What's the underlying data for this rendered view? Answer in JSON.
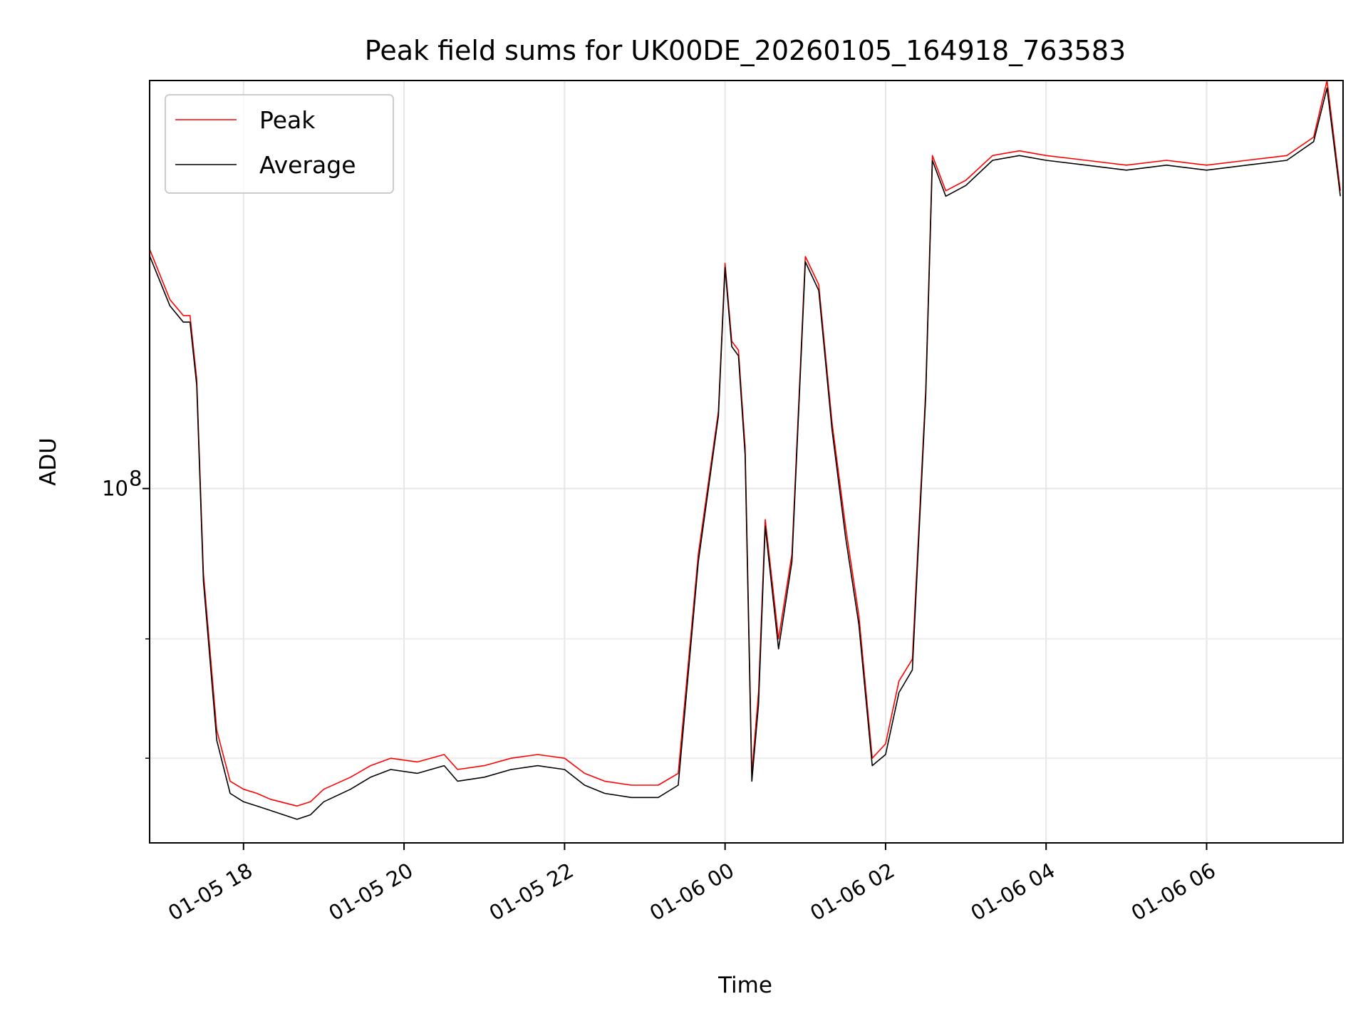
{
  "chart_data": {
    "type": "line",
    "title": "Peak field sums for UK00DE_20260105_164918_763583",
    "xlabel": "Time",
    "ylabel": "ADU",
    "x_unit": "hours",
    "xlim": [
      16.83,
      7.7
    ],
    "x_start_day": "01-05",
    "ylim": [
      30000000,
      400000000
    ],
    "y_scale": "log",
    "grid": true,
    "legend_position": "top-left",
    "x_ticks": [
      {
        "value": 18,
        "label": "01-05 18"
      },
      {
        "value": 20,
        "label": "01-05 20"
      },
      {
        "value": 22,
        "label": "01-05 22"
      },
      {
        "value": 0,
        "label": "01-06 00"
      },
      {
        "value": 2,
        "label": "01-06 02"
      },
      {
        "value": 4,
        "label": "01-06 04"
      },
      {
        "value": 6,
        "label": "01-06 06"
      }
    ],
    "y_major_ticks": [
      {
        "value": 100000000,
        "label_base": "10",
        "label_exp": "8"
      }
    ],
    "y_minor_ticks": [
      40000000,
      60000000
    ],
    "series": [
      {
        "name": "Peak",
        "color": "#ff0000",
        "x": [
          "01-05 16:50",
          "01-05 17:05",
          "01-05 17:15",
          "01-05 17:20",
          "01-05 17:25",
          "01-05 17:30",
          "01-05 17:40",
          "01-05 17:50",
          "01-05 18:00",
          "01-05 18:10",
          "01-05 18:20",
          "01-05 18:40",
          "01-05 18:50",
          "01-05 19:00",
          "01-05 19:20",
          "01-05 19:35",
          "01-05 19:50",
          "01-05 20:10",
          "01-05 20:30",
          "01-05 20:40",
          "01-05 21:00",
          "01-05 21:20",
          "01-05 21:40",
          "01-05 22:00",
          "01-05 22:15",
          "01-05 22:30",
          "01-05 22:50",
          "01-05 23:10",
          "01-05 23:25",
          "01-05 23:40",
          "01-05 23:55",
          "01-06 00:00",
          "01-06 00:05",
          "01-06 00:10",
          "01-06 00:15",
          "01-06 00:20",
          "01-06 00:25",
          "01-06 00:30",
          "01-06 00:40",
          "01-06 00:50",
          "01-06 01:00",
          "01-06 01:10",
          "01-06 01:20",
          "01-06 01:30",
          "01-06 01:40",
          "01-06 01:50",
          "01-06 02:00",
          "01-06 02:10",
          "01-06 02:20",
          "01-06 02:30",
          "01-06 02:35",
          "01-06 02:45",
          "01-06 03:00",
          "01-06 03:20",
          "01-06 03:40",
          "01-06 04:00",
          "01-06 04:30",
          "01-06 05:00",
          "01-06 05:30",
          "01-06 06:00",
          "01-06 06:30",
          "01-06 07:00",
          "01-06 07:20",
          "01-06 07:30",
          "01-06 07:40"
        ],
        "values": [
          225000000,
          190000000,
          180000000,
          180000000,
          145000000,
          75000000,
          44000000,
          37000000,
          36000000,
          35500000,
          34800000,
          34000000,
          34500000,
          36000000,
          37500000,
          39000000,
          40000000,
          39500000,
          40500000,
          38500000,
          39000000,
          40000000,
          40500000,
          40000000,
          38000000,
          37000000,
          36500000,
          36500000,
          38000000,
          80000000,
          130000000,
          215000000,
          165000000,
          160000000,
          115000000,
          38000000,
          50000000,
          90000000,
          60000000,
          80000000,
          220000000,
          200000000,
          125000000,
          88000000,
          65000000,
          40000000,
          42000000,
          52000000,
          56000000,
          140000000,
          310000000,
          275000000,
          285000000,
          310000000,
          315000000,
          310000000,
          305000000,
          300000000,
          305000000,
          300000000,
          305000000,
          310000000,
          330000000,
          400000000,
          275000000
        ]
      },
      {
        "name": "Average",
        "color": "#000000",
        "x": [
          "01-05 16:50",
          "01-05 17:05",
          "01-05 17:15",
          "01-05 17:20",
          "01-05 17:25",
          "01-05 17:30",
          "01-05 17:40",
          "01-05 17:50",
          "01-05 18:00",
          "01-05 18:10",
          "01-05 18:20",
          "01-05 18:40",
          "01-05 18:50",
          "01-05 19:00",
          "01-05 19:20",
          "01-05 19:35",
          "01-05 19:50",
          "01-05 20:10",
          "01-05 20:30",
          "01-05 20:40",
          "01-05 21:00",
          "01-05 21:20",
          "01-05 21:40",
          "01-05 22:00",
          "01-05 22:15",
          "01-05 22:30",
          "01-05 22:50",
          "01-05 23:10",
          "01-05 23:25",
          "01-05 23:40",
          "01-05 23:55",
          "01-06 00:00",
          "01-06 00:05",
          "01-06 00:10",
          "01-06 00:15",
          "01-06 00:20",
          "01-06 00:25",
          "01-06 00:30",
          "01-06 00:40",
          "01-06 00:50",
          "01-06 01:00",
          "01-06 01:10",
          "01-06 01:20",
          "01-06 01:30",
          "01-06 01:40",
          "01-06 01:50",
          "01-06 02:00",
          "01-06 02:10",
          "01-06 02:20",
          "01-06 02:30",
          "01-06 02:35",
          "01-06 02:45",
          "01-06 03:00",
          "01-06 03:20",
          "01-06 03:40",
          "01-06 04:00",
          "01-06 04:30",
          "01-06 05:00",
          "01-06 05:30",
          "01-06 06:00",
          "01-06 06:30",
          "01-06 07:00",
          "01-06 07:20",
          "01-06 07:30",
          "01-06 07:40"
        ],
        "values": [
          220000000,
          186000000,
          176000000,
          176000000,
          142000000,
          73000000,
          42500000,
          35500000,
          34500000,
          34000000,
          33500000,
          32500000,
          33000000,
          34500000,
          36000000,
          37500000,
          38500000,
          38000000,
          39000000,
          37000000,
          37500000,
          38500000,
          39000000,
          38500000,
          36500000,
          35500000,
          35000000,
          35000000,
          36500000,
          78000000,
          128000000,
          212000000,
          162000000,
          157000000,
          112000000,
          37000000,
          48000000,
          88000000,
          58000000,
          78000000,
          216000000,
          196000000,
          122000000,
          85000000,
          63000000,
          39000000,
          40500000,
          50000000,
          54000000,
          137000000,
          305000000,
          270000000,
          280000000,
          305000000,
          310000000,
          305000000,
          300000000,
          295000000,
          300000000,
          295000000,
          300000000,
          305000000,
          325000000,
          390000000,
          270000000
        ]
      }
    ]
  }
}
